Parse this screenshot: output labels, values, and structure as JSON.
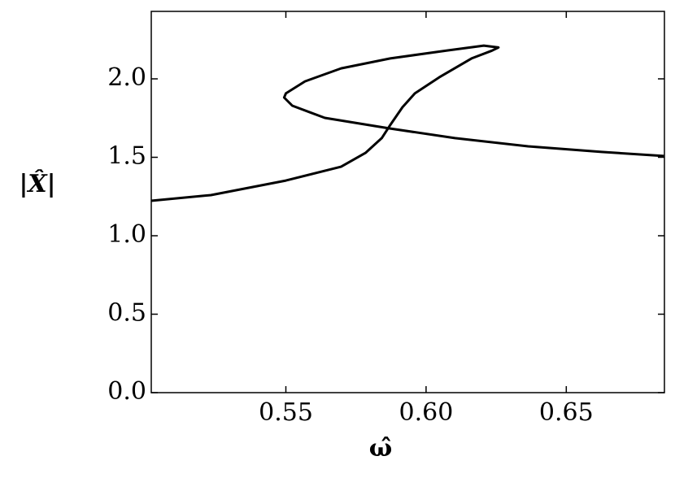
{
  "chart_data": {
    "type": "line",
    "xlabel": "ω̂",
    "ylabel": "|X̂|",
    "xlim": [
      0.502,
      0.685
    ],
    "ylim": [
      0,
      2.43
    ],
    "xticks": [
      0.55,
      {
        "value": 0.6,
        "label": "0.60"
      },
      0.65
    ],
    "yticks": [
      {
        "value": 0,
        "label": "0.0"
      },
      0.5,
      {
        "value": 1,
        "label": "1.0"
      },
      1.5,
      {
        "value": 2,
        "label": "2.0"
      }
    ],
    "series": [
      {
        "color": "#000000",
        "x": [
          0.5019,
          0.5233,
          0.55,
          0.5697,
          0.5784,
          0.5842,
          0.587,
          0.5916,
          0.596,
          0.6047,
          0.6162,
          0.6235,
          0.6258,
          0.6206,
          0.6075,
          0.5872,
          0.5697,
          0.5568,
          0.55,
          0.5494,
          0.5523,
          0.5639,
          0.587,
          0.6103,
          0.6364,
          0.6626,
          0.6848
        ],
        "values": [
          1.223,
          1.259,
          1.352,
          1.44,
          1.528,
          1.622,
          1.7,
          1.819,
          1.907,
          2.01,
          2.13,
          2.18,
          2.2,
          2.212,
          2.181,
          2.13,
          2.067,
          1.984,
          1.907,
          1.881,
          1.829,
          1.751,
          1.684,
          1.622,
          1.57,
          1.534,
          1.508
        ]
      }
    ]
  }
}
